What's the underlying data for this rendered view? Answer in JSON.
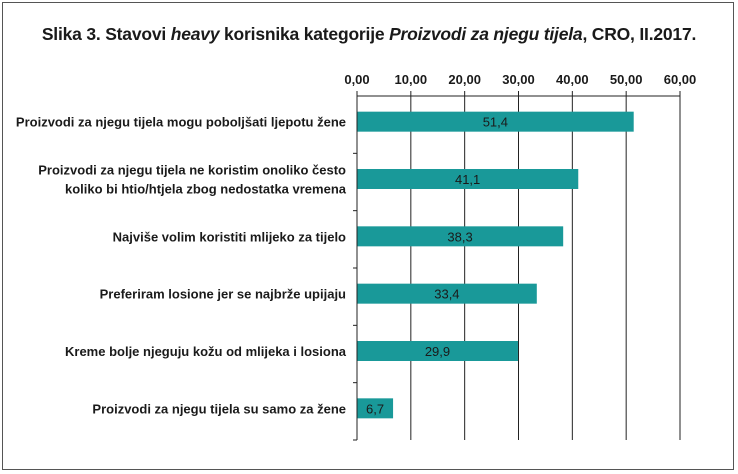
{
  "chart_data": {
    "type": "bar",
    "orientation": "horizontal",
    "title": "Slika 3. Stavovi heavy korisnika kategorije Proizvodi za njegu tijela, CRO, II.2017.",
    "title_parts": {
      "p1": "Slika 3. Stavovi ",
      "p2": "heavy",
      "p3": " korisnika kategorije ",
      "p4": "Proizvodi za njegu tijela",
      "p5": ", CRO, II.2017."
    },
    "categories": [
      [
        "Proizvodi za njegu tijela mogu poboljšati ljepotu žene"
      ],
      [
        "Proizvodi za njegu tijela ne koristim onoliko često",
        "koliko bi htio/htjela zbog nedostatka vremena"
      ],
      [
        "Najviše volim koristiti mlijeko za tijelo"
      ],
      [
        "Preferiram losione jer se najbrže upijaju"
      ],
      [
        "Kreme bolje njeguju kožu od mlijeka i losiona"
      ],
      [
        "Proizvodi za njegu tijela su samo za žene"
      ]
    ],
    "values": [
      51.4,
      41.1,
      38.3,
      33.4,
      29.9,
      6.7
    ],
    "value_labels": [
      "51,4",
      "41,1",
      "38,3",
      "33,4",
      "29,9",
      "6,7"
    ],
    "xlim": [
      0,
      60
    ],
    "ticks": [
      0,
      10,
      20,
      30,
      40,
      50,
      60
    ],
    "tick_labels": [
      "0,00",
      "10,00",
      "20,00",
      "30,00",
      "40,00",
      "50,00",
      "60,00"
    ],
    "axis_position": "top",
    "grid": true,
    "bar_color": "#199999",
    "xlabel": "",
    "ylabel": ""
  }
}
